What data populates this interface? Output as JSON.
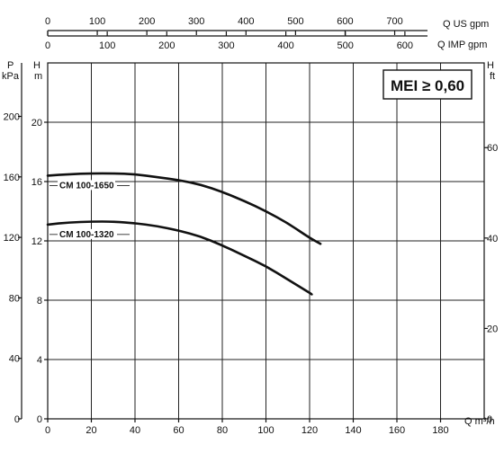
{
  "chart_data": {
    "type": "line",
    "title": "",
    "x_axis": {
      "label": "Q m³/h",
      "range": [
        0,
        200
      ],
      "ticks": [
        0,
        20,
        40,
        60,
        80,
        100,
        120,
        140,
        160,
        180
      ]
    },
    "top_axes": [
      {
        "label": "Q US gpm",
        "ticks": [
          0,
          100,
          200,
          300,
          400,
          500,
          600,
          700
        ]
      },
      {
        "label": "Q IMP gpm",
        "ticks": [
          0,
          100,
          200,
          300,
          400,
          500,
          600
        ]
      }
    ],
    "left_axes": [
      {
        "label_top": "P",
        "label_bottom": "kPa",
        "ticks": [
          0,
          40,
          80,
          120,
          160,
          200
        ]
      },
      {
        "label_top": "H",
        "label_bottom": "m",
        "range": [
          0,
          24
        ],
        "ticks": [
          0,
          4,
          8,
          12,
          16,
          20
        ]
      }
    ],
    "right_axis": {
      "label_top": "H",
      "label_bottom": "ft",
      "ticks": [
        0,
        20,
        40,
        60
      ]
    },
    "grid": true,
    "annotation": {
      "prefix": "MEI",
      "symbol": "≥",
      "value": "0,60"
    },
    "series": [
      {
        "name": "CM 100-1650",
        "x": [
          0,
          10,
          20,
          30,
          40,
          50,
          60,
          70,
          80,
          90,
          100,
          110,
          120,
          125
        ],
        "y": [
          16.4,
          16.5,
          16.55,
          16.55,
          16.5,
          16.3,
          16.1,
          15.8,
          15.3,
          14.7,
          14.0,
          13.2,
          12.2,
          11.8
        ]
      },
      {
        "name": "CM 100-1320",
        "x": [
          0,
          10,
          20,
          30,
          40,
          50,
          60,
          70,
          80,
          90,
          100,
          110,
          121
        ],
        "y": [
          13.1,
          13.25,
          13.3,
          13.3,
          13.2,
          13.0,
          12.7,
          12.3,
          11.7,
          11.0,
          10.3,
          9.4,
          8.4
        ]
      }
    ]
  }
}
